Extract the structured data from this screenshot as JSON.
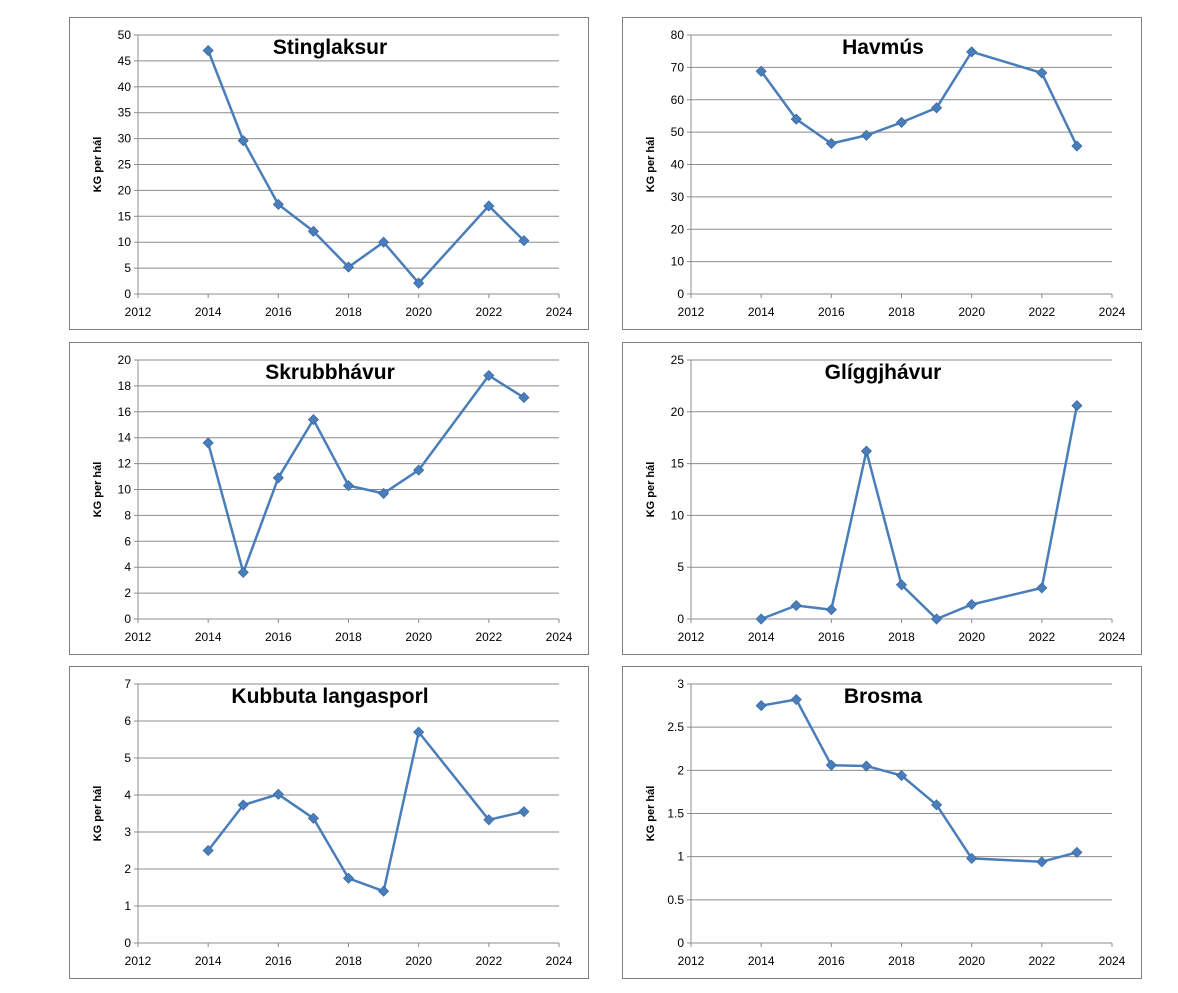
{
  "chart_data": [
    {
      "type": "line",
      "title": "Stinglaksur",
      "ylabel": "KG per hál",
      "xlabel": "",
      "xlim": [
        2012,
        2024
      ],
      "xticks": [
        2012,
        2014,
        2016,
        2018,
        2020,
        2022,
        2024
      ],
      "ylim": [
        0,
        50
      ],
      "yticks": [
        0,
        5,
        10,
        15,
        20,
        25,
        30,
        35,
        40,
        45,
        50
      ],
      "grid": true,
      "series": [
        {
          "x": [
            2014,
            2015,
            2016,
            2017,
            2018,
            2019,
            2020,
            2022,
            2023
          ],
          "values": [
            47,
            29.6,
            17.3,
            12.1,
            5.2,
            10,
            2.1,
            17,
            10.3
          ]
        }
      ]
    },
    {
      "type": "line",
      "title": "Havmús",
      "ylabel": "KG per hál",
      "xlabel": "",
      "xlim": [
        2012,
        2024
      ],
      "xticks": [
        2012,
        2014,
        2016,
        2018,
        2020,
        2022,
        2024
      ],
      "ylim": [
        0,
        80
      ],
      "yticks": [
        0,
        10,
        20,
        30,
        40,
        50,
        60,
        70,
        80
      ],
      "grid": true,
      "series": [
        {
          "x": [
            2014,
            2015,
            2016,
            2017,
            2018,
            2019,
            2020,
            2022,
            2023
          ],
          "values": [
            68.8,
            54,
            46.5,
            49,
            53,
            57.5,
            74.8,
            68.3,
            45.7
          ]
        }
      ]
    },
    {
      "type": "line",
      "title": "Skrubbhávur",
      "ylabel": "KG per hál",
      "xlabel": "",
      "xlim": [
        2012,
        2024
      ],
      "xticks": [
        2012,
        2014,
        2016,
        2018,
        2020,
        2022,
        2024
      ],
      "ylim": [
        0,
        20
      ],
      "yticks": [
        0,
        2,
        4,
        6,
        8,
        10,
        12,
        14,
        16,
        18,
        20
      ],
      "grid": true,
      "series": [
        {
          "x": [
            2014,
            2015,
            2016,
            2017,
            2018,
            2019,
            2020,
            2022,
            2023
          ],
          "values": [
            13.6,
            3.6,
            10.9,
            15.4,
            10.3,
            9.7,
            11.5,
            18.8,
            17.1
          ]
        }
      ]
    },
    {
      "type": "line",
      "title": "Glíggjhávur",
      "ylabel": "KG per hál",
      "xlabel": "",
      "xlim": [
        2012,
        2024
      ],
      "xticks": [
        2012,
        2014,
        2016,
        2018,
        2020,
        2022,
        2024
      ],
      "ylim": [
        0,
        25
      ],
      "yticks": [
        0,
        5,
        10,
        15,
        20,
        25
      ],
      "grid": true,
      "series": [
        {
          "x": [
            2014,
            2015,
            2016,
            2017,
            2018,
            2019,
            2020,
            2022,
            2023
          ],
          "values": [
            0,
            1.3,
            0.9,
            16.2,
            3.3,
            0,
            1.4,
            3,
            20.6
          ]
        }
      ]
    },
    {
      "type": "line",
      "title": "Kubbuta langasporl",
      "ylabel": "KG per hál",
      "xlabel": "",
      "xlim": [
        2012,
        2024
      ],
      "xticks": [
        2012,
        2014,
        2016,
        2018,
        2020,
        2022,
        2024
      ],
      "ylim": [
        0,
        7
      ],
      "yticks": [
        0,
        1,
        2,
        3,
        4,
        5,
        6,
        7
      ],
      "grid": true,
      "series": [
        {
          "x": [
            2014,
            2015,
            2016,
            2017,
            2018,
            2019,
            2020,
            2022,
            2023
          ],
          "values": [
            2.5,
            3.73,
            4.02,
            3.37,
            1.75,
            1.4,
            5.7,
            3.33,
            3.55
          ]
        }
      ]
    },
    {
      "type": "line",
      "title": "Brosma",
      "ylabel": "KG per hál",
      "xlabel": "",
      "xlim": [
        2012,
        2024
      ],
      "xticks": [
        2012,
        2014,
        2016,
        2018,
        2020,
        2022,
        2024
      ],
      "ylim": [
        0,
        3
      ],
      "yticks": [
        0,
        0.5,
        1,
        1.5,
        2,
        2.5,
        3
      ],
      "grid": true,
      "series": [
        {
          "x": [
            2014,
            2015,
            2016,
            2017,
            2018,
            2019,
            2020,
            2022,
            2023
          ],
          "values": [
            2.75,
            2.82,
            2.06,
            2.05,
            1.94,
            1.6,
            0.98,
            0.94,
            1.05
          ]
        }
      ]
    }
  ],
  "colors": {
    "series": "#4a7ebb",
    "grid": "#8c8c8c",
    "panel_border": "#808080"
  }
}
